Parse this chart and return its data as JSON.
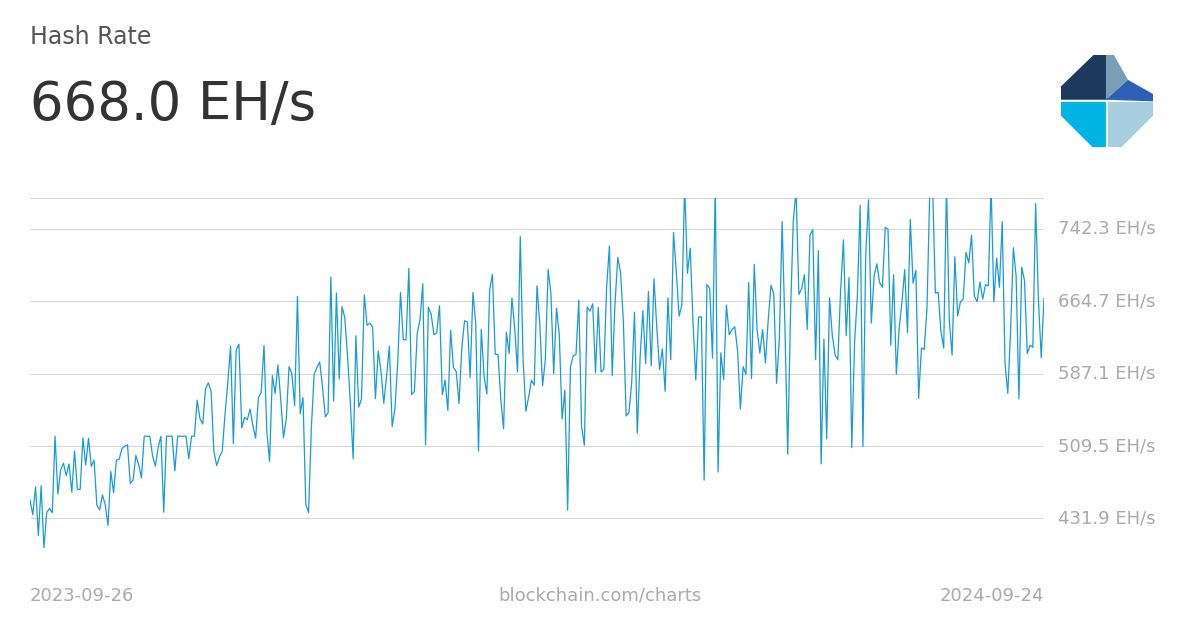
{
  "title_label": "Hash Rate",
  "current_value": "668.0 EH/s",
  "line_color": "#1a9ad6",
  "background_color": "#ffffff",
  "grid_color": "#d8d8d8",
  "ytick_labels": [
    "431.9 EH/s",
    "509.5 EH/s",
    "587.1 EH/s",
    "664.7 EH/s",
    "742.3 EH/s"
  ],
  "ytick_values": [
    431.9,
    509.5,
    587.1,
    664.7,
    742.3
  ],
  "ymin": 400.0,
  "ymax": 775.0,
  "xlabel_left": "2023-09-26",
  "xlabel_center": "blockchain.com/charts",
  "xlabel_right": "2024-09-24",
  "title_fontsize": 17,
  "value_fontsize": 38,
  "axis_label_fontsize": 13,
  "ytick_fontsize": 13,
  "logo_colors": {
    "top_left": "#1e3a5f",
    "top_right": "#7a9eb5",
    "bottom_left": "#00b4e6",
    "bottom_right": "#a8cfe0",
    "center_right": "#2e5fb5"
  }
}
